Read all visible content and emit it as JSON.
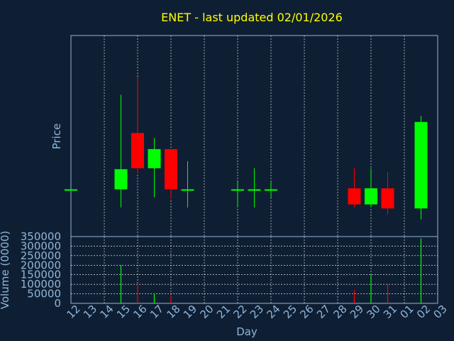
{
  "chart_data": {
    "type": "candlestick",
    "title": "ENET - last updated 02/01/2026",
    "price_panel": {
      "ylabel": "Price",
      "ytick_labels_shown": false,
      "grid": true
    },
    "volume_panel": {
      "ylabel": "Volume (0000)",
      "ylim": [
        0,
        350000
      ],
      "yticks": [
        "0",
        "50000",
        "100000",
        "150000",
        "200000",
        "250000",
        "300000",
        "350000"
      ],
      "grid": true
    },
    "xlabel": "Day",
    "x_tick_labels": [
      "12",
      "13",
      "14",
      "15",
      "16",
      "17",
      "18",
      "19",
      "20",
      "21",
      "22",
      "23",
      "24",
      "25",
      "26",
      "27",
      "28",
      "29",
      "30",
      "31",
      "01",
      "02",
      "03"
    ],
    "candles": [
      {
        "day": "12",
        "open": 23.5,
        "high": 23.5,
        "low": 23.5,
        "close": 23.5,
        "volume": 0
      },
      {
        "day": "15",
        "open": 23.5,
        "high": 70.5,
        "low": 14.5,
        "close": 33.5,
        "volume": 200000
      },
      {
        "day": "16",
        "open": 51.5,
        "high": 79.5,
        "low": 31.5,
        "close": 34.0,
        "volume": 100000
      },
      {
        "day": "17",
        "open": 34.0,
        "high": 49.0,
        "low": 19.5,
        "close": 43.5,
        "volume": 50000
      },
      {
        "day": "18",
        "open": 43.5,
        "high": 43.5,
        "low": 18.5,
        "close": 23.5,
        "volume": 40000
      },
      {
        "day": "19",
        "open": 23.5,
        "high": 37.5,
        "low": 14.5,
        "close": 23.5,
        "volume": 0
      },
      {
        "day": "22",
        "open": 23.5,
        "high": 27.5,
        "low": 14.5,
        "close": 23.5,
        "volume": 0
      },
      {
        "day": "23",
        "open": 23.5,
        "high": 34.0,
        "low": 14.5,
        "close": 23.5,
        "volume": 0
      },
      {
        "day": "24",
        "open": 23.5,
        "high": 27.5,
        "low": 19.5,
        "close": 23.5,
        "volume": 0
      },
      {
        "day": "29",
        "open": 24.0,
        "high": 34.0,
        "low": 14.5,
        "close": 16.0,
        "volume": 70000
      },
      {
        "day": "30",
        "open": 16.0,
        "high": 34.0,
        "low": 14.5,
        "close": 24.0,
        "volume": 150000
      },
      {
        "day": "31",
        "open": 24.0,
        "high": 32.0,
        "low": 11.0,
        "close": 14.0,
        "volume": 100000
      },
      {
        "day": "02",
        "open": 14.0,
        "high": 60.0,
        "low": 8.5,
        "close": 57.0,
        "volume": 340000
      }
    ],
    "colors": {
      "background": "#0f1f33",
      "up": "#00ff00",
      "down": "#ff0000",
      "grid": "#ffffff",
      "axis": "#8fb6d9",
      "title": "#ffff00"
    }
  }
}
